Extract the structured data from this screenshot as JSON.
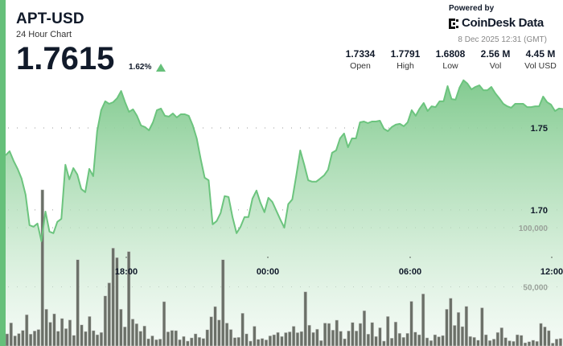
{
  "header": {
    "symbol": "APT-USD",
    "subtitle": "24 Hour Chart",
    "price": "1.7615",
    "change": "1.62%",
    "change_direction": "up",
    "powered_by": "Powered by",
    "brand": "CoinDesk Data",
    "timestamp": "8 Dec 2025 12:31 (GMT)"
  },
  "stats": [
    {
      "value": "1.7334",
      "label": "Open"
    },
    {
      "value": "1.7791",
      "label": "High"
    },
    {
      "value": "1.6808",
      "label": "Low"
    },
    {
      "value": "2.56 M",
      "label": "Vol"
    },
    {
      "value": "4.45 M",
      "label": "Vol USD"
    }
  ],
  "colors": {
    "accent": "#66c07a",
    "line": "#6cc47e",
    "volume": "#6b7068"
  },
  "chart_data": [
    {
      "type": "area",
      "series": "price",
      "x_tick_labels": [
        "18:00",
        "00:00",
        "06:00",
        "12:00"
      ],
      "y_tick_labels": [
        "1.75",
        "1.70"
      ],
      "y_ticks": [
        1.75,
        1.7
      ],
      "ylim": [
        1.617,
        1.828
      ],
      "grid": "horizontal dotted",
      "values": [
        1.7333,
        1.7358,
        1.7299,
        1.725,
        1.7191,
        1.7093,
        1.6907,
        1.6897,
        1.6917,
        1.6809,
        1.699,
        1.6868,
        1.6858,
        1.6927,
        1.6946,
        1.7275,
        1.7186,
        1.7255,
        1.7216,
        1.7128,
        1.7108,
        1.725,
        1.7206,
        1.748,
        1.7608,
        1.7662,
        1.7647,
        1.7657,
        1.7681,
        1.7725,
        1.7657,
        1.7598,
        1.7613,
        1.7574,
        1.7515,
        1.7505,
        1.7485,
        1.7534,
        1.7608,
        1.7618,
        1.7574,
        1.7569,
        1.7588,
        1.7564,
        1.7583,
        1.7583,
        1.7574,
        1.7515,
        1.7436,
        1.7309,
        1.7196,
        1.7181,
        1.6912,
        1.6932,
        1.6981,
        1.7084,
        1.7079,
        1.6956,
        1.6858,
        1.6897,
        1.6956,
        1.6956,
        1.7069,
        1.7118,
        1.7044,
        1.6986,
        1.7074,
        1.7049,
        1.6995,
        1.6941,
        1.6892,
        1.7035,
        1.7064,
        1.7211,
        1.7363,
        1.7275,
        1.7181,
        1.7172,
        1.7172,
        1.7191,
        1.7211,
        1.7245,
        1.7348,
        1.7363,
        1.7436,
        1.7466,
        1.7382,
        1.7436,
        1.7436,
        1.7534,
        1.7539,
        1.7529,
        1.7539,
        1.7539,
        1.7544,
        1.7495,
        1.748,
        1.7505,
        1.752,
        1.7525,
        1.751,
        1.7534,
        1.7608,
        1.7574,
        1.7618,
        1.7652,
        1.7603,
        1.7632,
        1.7627,
        1.7662,
        1.7662,
        1.7755,
        1.7676,
        1.7672,
        1.7745,
        1.7791,
        1.777,
        1.7735,
        1.775,
        1.776,
        1.773,
        1.773,
        1.775,
        1.7711,
        1.7681,
        1.7647,
        1.7632,
        1.7623,
        1.7647,
        1.7647,
        1.7647,
        1.7627,
        1.7627,
        1.7632,
        1.7632,
        1.7691,
        1.7657,
        1.7642,
        1.7603,
        1.7618,
        1.7615
      ]
    },
    {
      "type": "bar",
      "series": "volume",
      "y_tick_labels": [
        "100,000",
        "50,000"
      ],
      "y_ticks": [
        100000,
        50000
      ],
      "ylim": [
        0,
        292500
      ],
      "values": [
        10290,
        19600,
        8575,
        10535,
        13230,
        26460,
        10045,
        12740,
        13965,
        132000,
        31115,
        20090,
        27195,
        12495,
        23275,
        14700,
        22050,
        9065,
        73010,
        17885,
        12250,
        24990,
        12985,
        9555,
        11515,
        42385,
        53410,
        82810,
        74725,
        31115,
        16170,
        79870,
        22785,
        18865,
        12495,
        16905,
        6125,
        8575,
        5390,
        5880,
        37485,
        12005,
        13230,
        12985,
        5390,
        8085,
        4165,
        6860,
        10290,
        7350,
        6370,
        13720,
        24745,
        33320,
        22050,
        73010,
        19355,
        13965,
        7105,
        7350,
        27685,
        10290,
        4165,
        16660,
        5635,
        6370,
        5145,
        8575,
        9555,
        11515,
        8085,
        11270,
        12005,
        16660,
        11270,
        12250,
        45815,
        17640,
        11515,
        14210,
        4655,
        19355,
        19110,
        13475,
        21805,
        12495,
        6125,
        12740,
        19845,
        12740,
        19110,
        29890,
        10045,
        19845,
        8085,
        15435,
        4165,
        24990,
        6615,
        20335,
        10780,
        7350,
        10780,
        37730,
        11760,
        9555,
        44100,
        6860,
        4655,
        9555,
        7840,
        8820,
        31115,
        40425,
        17395,
        28420,
        16415,
        33565,
        8085,
        7350,
        4900,
        32340,
        9555,
        4655,
        5880,
        11515,
        15435,
        7105,
        4410,
        3920,
        9555,
        9065,
        2695,
        3675,
        4900,
        3920,
        19110,
        16170,
        12985,
        2450,
        5880,
        6370
      ]
    }
  ]
}
